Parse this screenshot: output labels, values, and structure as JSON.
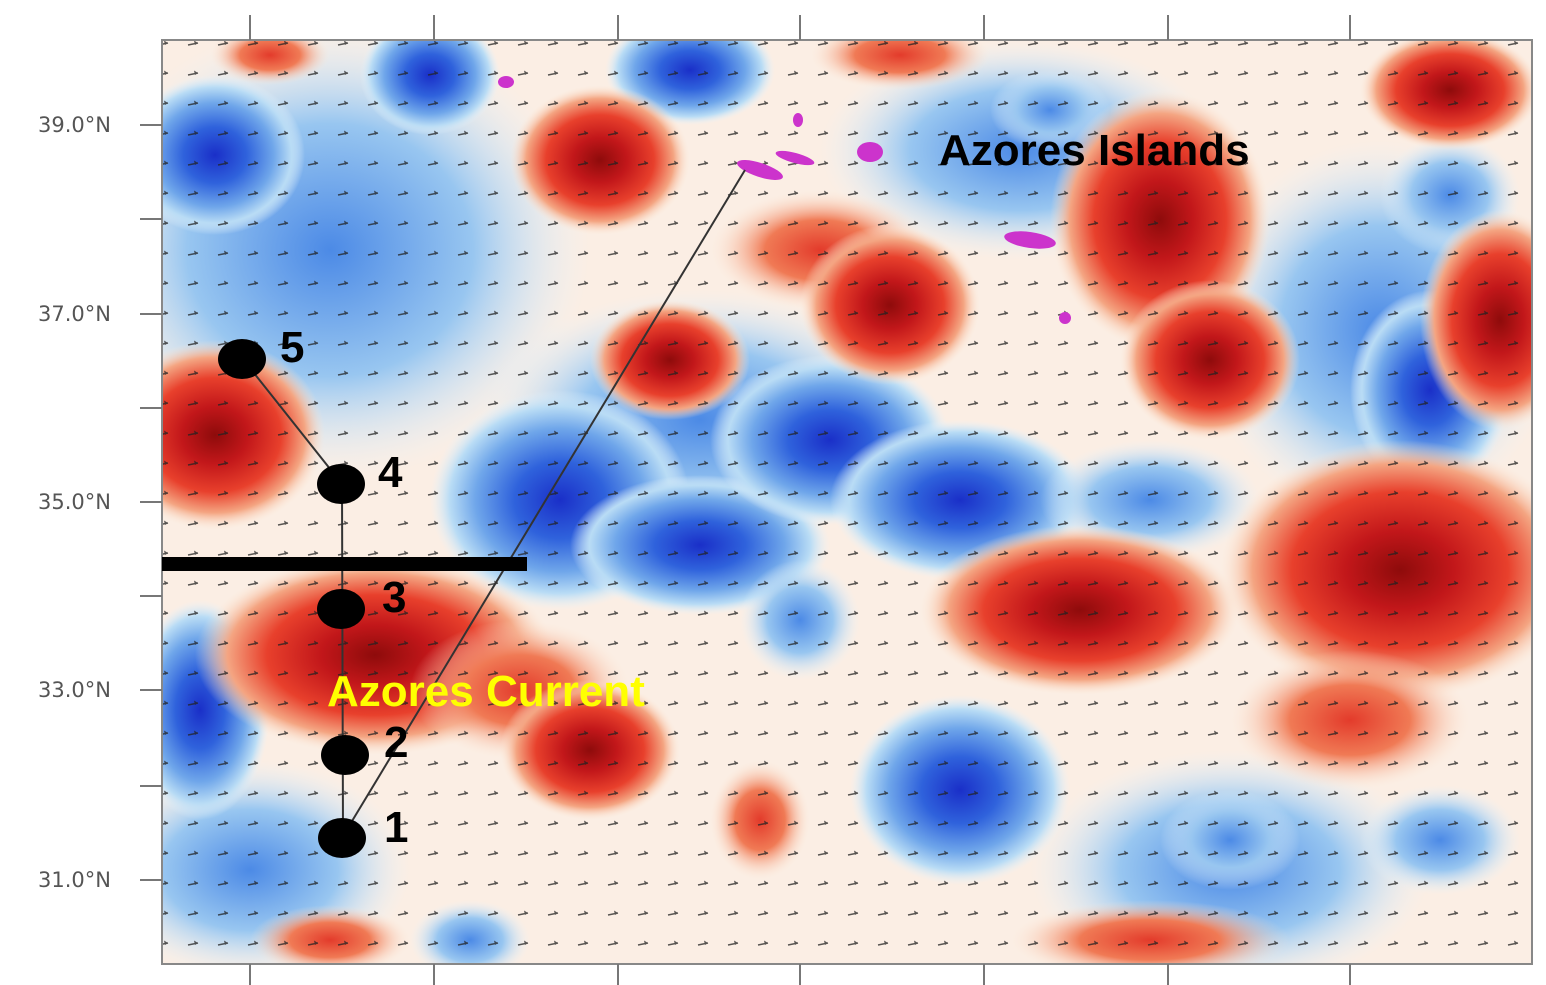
{
  "map": {
    "axis": {
      "y_ticks": [
        "39.0°N",
        "37.0°N",
        "35.0°N",
        "33.0°N",
        "31.0°N"
      ]
    },
    "labels": {
      "islands": "Azores Islands",
      "current": "Azores Current"
    },
    "colors": {
      "islands_text": "#000000",
      "current_text": "#ffff00",
      "islands_mark": "#cc33cc",
      "warm": "#d7301f",
      "cold": "#2b59d6"
    },
    "stations": [
      {
        "label": "1"
      },
      {
        "label": "2"
      },
      {
        "label": "3"
      },
      {
        "label": "4"
      },
      {
        "label": "5"
      }
    ]
  }
}
